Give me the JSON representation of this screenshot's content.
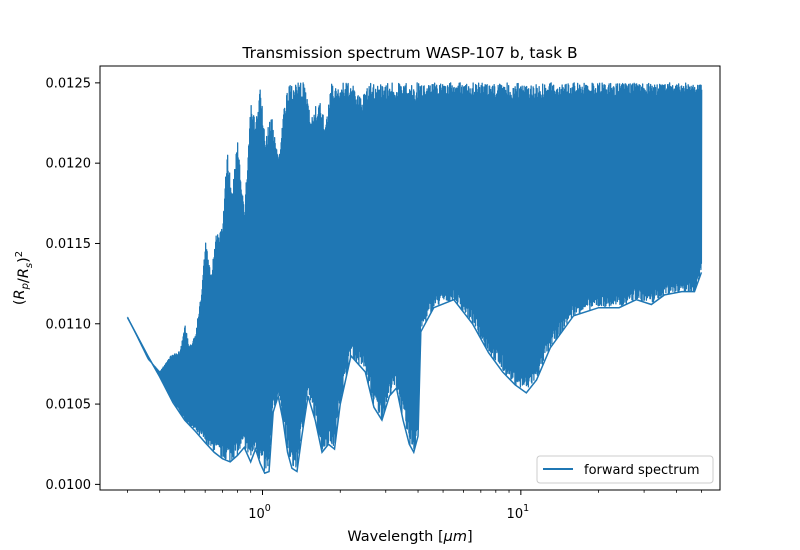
{
  "chart_data": {
    "type": "line",
    "title": "Transmission spectrum WASP-107 b, task B",
    "xlabel": "Wavelength [μm]",
    "ylabel": "(R_p/R_s)^2",
    "xscale": "log",
    "xlim": [
      0.235,
      59
    ],
    "ylim": [
      0.009965,
      0.012605
    ],
    "x_ticks": [
      {
        "value": 1,
        "base": "10",
        "exp": "0"
      },
      {
        "value": 10,
        "base": "10",
        "exp": "1"
      }
    ],
    "y_ticks": [
      0.01,
      0.0105,
      0.011,
      0.0115,
      0.012,
      0.0125
    ],
    "y_tick_labels": [
      "0.0100",
      "0.0105",
      "0.0110",
      "0.0115",
      "0.0120",
      "0.0125"
    ],
    "legend": {
      "placement": "lower-right",
      "entries": [
        "forward spectrum"
      ]
    },
    "grid": false,
    "series": [
      {
        "name": "forward spectrum",
        "color": "#1f77b4",
        "band_upper": [
          [
            0.3,
            0.01104
          ],
          [
            0.36,
            0.01078
          ],
          [
            0.4,
            0.0107
          ],
          [
            0.44,
            0.0108
          ],
          [
            0.48,
            0.01083
          ],
          [
            0.5,
            0.011
          ],
          [
            0.52,
            0.01085
          ],
          [
            0.55,
            0.01095
          ],
          [
            0.58,
            0.0112
          ],
          [
            0.6,
            0.01152
          ],
          [
            0.63,
            0.0113
          ],
          [
            0.66,
            0.01155
          ],
          [
            0.7,
            0.0116
          ],
          [
            0.73,
            0.01211
          ],
          [
            0.76,
            0.0118
          ],
          [
            0.8,
            0.01215
          ],
          [
            0.85,
            0.0117
          ],
          [
            0.9,
            0.0124
          ],
          [
            0.94,
            0.01225
          ],
          [
            0.98,
            0.0125
          ],
          [
            1.02,
            0.01215
          ],
          [
            1.08,
            0.0123
          ],
          [
            1.15,
            0.01205
          ],
          [
            1.22,
            0.0124
          ],
          [
            1.28,
            0.0125
          ],
          [
            1.35,
            0.0125
          ],
          [
            1.45,
            0.0125
          ],
          [
            1.55,
            0.0123
          ],
          [
            1.65,
            0.0124
          ],
          [
            1.75,
            0.01225
          ],
          [
            1.85,
            0.0125
          ],
          [
            2.0,
            0.0125
          ],
          [
            2.2,
            0.0125
          ],
          [
            2.4,
            0.0124
          ],
          [
            2.6,
            0.0125
          ],
          [
            3.0,
            0.0125
          ],
          [
            3.4,
            0.0125
          ],
          [
            3.8,
            0.0125
          ],
          [
            4.1,
            0.0125
          ],
          [
            6.0,
            0.0125
          ],
          [
            10.0,
            0.0125
          ],
          [
            20.0,
            0.0125
          ],
          [
            35.0,
            0.0125
          ],
          [
            50.0,
            0.0125
          ]
        ],
        "band_lower": [
          [
            0.3,
            0.01104
          ],
          [
            0.36,
            0.0108
          ],
          [
            0.4,
            0.01067
          ],
          [
            0.45,
            0.01051
          ],
          [
            0.5,
            0.0104
          ],
          [
            0.55,
            0.01033
          ],
          [
            0.6,
            0.01026
          ],
          [
            0.65,
            0.0102
          ],
          [
            0.7,
            0.01016
          ],
          [
            0.75,
            0.01014
          ],
          [
            0.8,
            0.01018
          ],
          [
            0.85,
            0.01023
          ],
          [
            0.9,
            0.01014
          ],
          [
            0.94,
            0.01022
          ],
          [
            0.98,
            0.01013
          ],
          [
            1.02,
            0.01007
          ],
          [
            1.06,
            0.01008
          ],
          [
            1.1,
            0.01045
          ],
          [
            1.15,
            0.01055
          ],
          [
            1.2,
            0.0104
          ],
          [
            1.25,
            0.0102
          ],
          [
            1.3,
            0.0101
          ],
          [
            1.36,
            0.01008
          ],
          [
            1.42,
            0.0103
          ],
          [
            1.5,
            0.01055
          ],
          [
            1.6,
            0.0104
          ],
          [
            1.7,
            0.0102
          ],
          [
            1.8,
            0.01025
          ],
          [
            1.9,
            0.01022
          ],
          [
            2.0,
            0.0105
          ],
          [
            2.2,
            0.0108
          ],
          [
            2.5,
            0.0107
          ],
          [
            2.7,
            0.01048
          ],
          [
            2.9,
            0.0104
          ],
          [
            3.1,
            0.01055
          ],
          [
            3.3,
            0.0106
          ],
          [
            3.5,
            0.0104
          ],
          [
            3.7,
            0.01025
          ],
          [
            3.85,
            0.0102
          ],
          [
            4.0,
            0.0103
          ],
          [
            4.1,
            0.01095
          ],
          [
            4.6,
            0.0111
          ],
          [
            5.5,
            0.01115
          ],
          [
            6.5,
            0.011
          ],
          [
            7.5,
            0.01082
          ],
          [
            8.5,
            0.0107
          ],
          [
            9.5,
            0.01062
          ],
          [
            10.5,
            0.01057
          ],
          [
            11.5,
            0.01065
          ],
          [
            13.0,
            0.01085
          ],
          [
            16.0,
            0.01105
          ],
          [
            20.0,
            0.0111
          ],
          [
            24.0,
            0.0111
          ],
          [
            28.0,
            0.01115
          ],
          [
            32.0,
            0.01112
          ],
          [
            36.0,
            0.01118
          ],
          [
            42.0,
            0.0112
          ],
          [
            47.0,
            0.0112
          ],
          [
            50.0,
            0.01132
          ]
        ]
      }
    ]
  }
}
